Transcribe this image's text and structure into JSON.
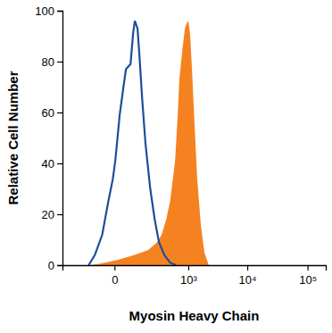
{
  "chart_data": {
    "type": "histogram",
    "x_label": "Myosin Heavy Chain",
    "y_label": "Relative Cell Number",
    "log": "x",
    "xlim": [
      -400,
      200000
    ],
    "xticks": [
      0,
      {
        "value": 1000,
        "label": "10³"
      },
      {
        "value": 10000,
        "label": "10⁴"
      },
      {
        "value": 100000,
        "label": "10⁵"
      }
    ],
    "ylim": [
      0,
      100
    ],
    "yticks": [
      0,
      20,
      40,
      60,
      80,
      100
    ],
    "series": [
      {
        "type": "area",
        "color": "#f58220",
        "x": [
          -97,
          -50,
          7,
          75,
          168,
          262,
          323,
          395,
          468,
          580,
          648,
          693,
          780,
          870,
          935,
          1000,
          1075,
          1160,
          1290,
          1430,
          1650,
          1900,
          2250
        ],
        "values": [
          0,
          0.5,
          2,
          4,
          6,
          9,
          12,
          18,
          25,
          41,
          59,
          73,
          84,
          93,
          95,
          96,
          91,
          77,
          55,
          34,
          16,
          5,
          0
        ]
      },
      {
        "type": "line",
        "color": "#1f4e9a",
        "x": [
          -107,
          -71,
          -38,
          -17,
          -4,
          2,
          14,
          26,
          35,
          54,
          66,
          75,
          90,
          102,
          119,
          144,
          186,
          232,
          285,
          364,
          468,
          600
        ],
        "values": [
          0,
          4,
          12,
          25,
          34,
          41,
          59,
          70,
          77,
          79,
          91,
          96,
          93,
          82,
          66,
          48,
          30,
          18,
          9,
          4,
          1,
          0
        ]
      }
    ]
  }
}
